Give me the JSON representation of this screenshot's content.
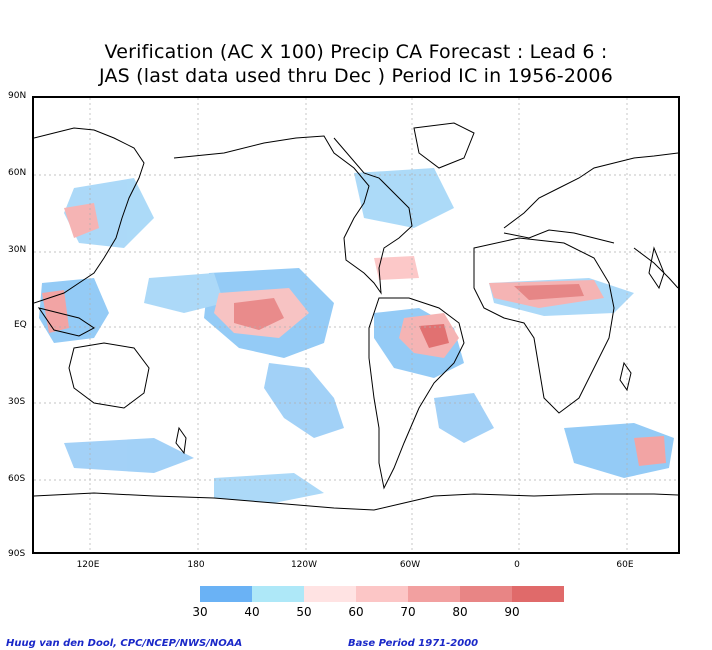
{
  "title": {
    "line1": "Verification (AC X 100) Precip CA Forecast : Lead 6 :",
    "line2": "JAS (last data used thru Dec ) Period IC in 1956-2006"
  },
  "lat_labels": [
    "90N",
    "60N",
    "30N",
    "EQ",
    "30S",
    "60S",
    "90S"
  ],
  "lon_labels": [
    "120E",
    "180",
    "120W",
    "60W",
    "0",
    "60E"
  ],
  "colorbar": {
    "colors": [
      "#6ab2f5",
      "#aee8f8",
      "#ffe3e3",
      "#fcc6c6",
      "#f2a0a0",
      "#e88585",
      "#e06a6a"
    ],
    "labels": [
      "30",
      "40",
      "50",
      "60",
      "70",
      "80",
      "90"
    ]
  },
  "footer": {
    "left": "Huug van den Dool, CPC/NCEP/NWS/NOAA",
    "right": "Base Period 1971-2000"
  }
}
